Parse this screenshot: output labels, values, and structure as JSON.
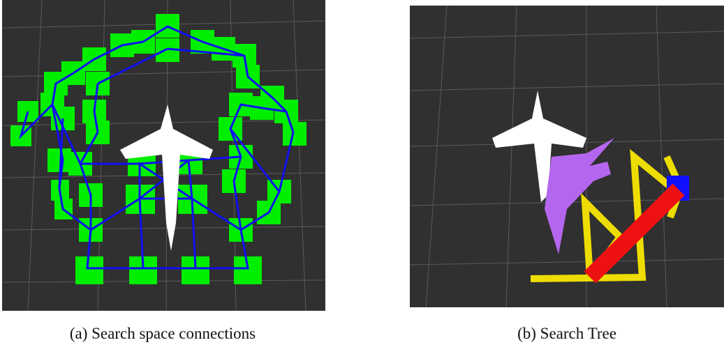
{
  "figure": {
    "panels": [
      {
        "caption": "(a) Search space connections"
      },
      {
        "caption": "(b) Search Tree"
      }
    ]
  }
}
